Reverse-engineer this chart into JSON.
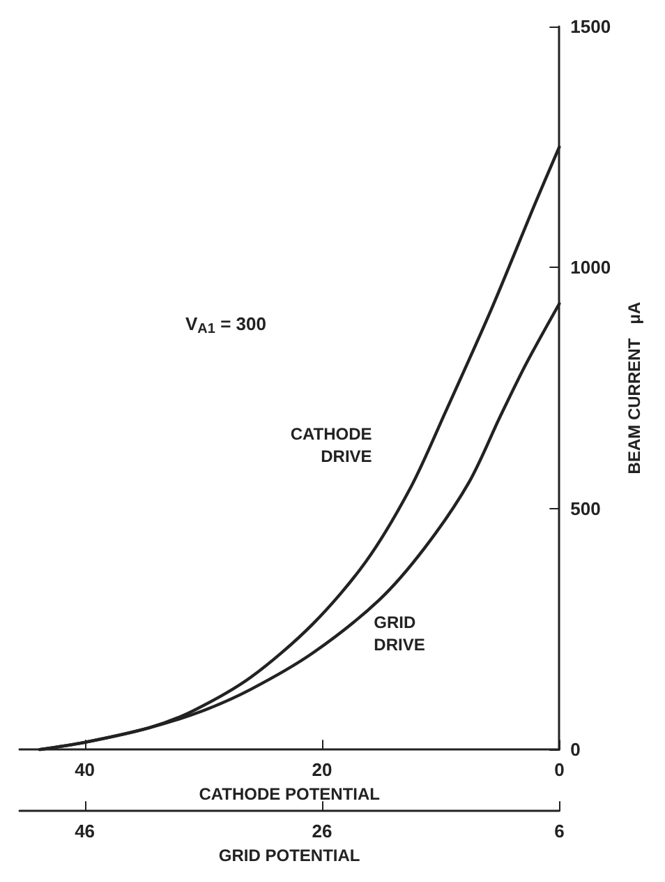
{
  "chart_data": {
    "type": "line",
    "xlabel": "CATHODE POTENTIAL",
    "x2label": "GRID POTENTIAL",
    "ylabel": "BEAM CURRENT   μA",
    "xlim": [
      45.5,
      0
    ],
    "xticks": [
      40,
      20,
      0
    ],
    "x2lim": [
      51.5,
      6
    ],
    "x2ticks": [
      46,
      26,
      6
    ],
    "ylim": [
      0,
      1500
    ],
    "yticks": [
      0,
      500,
      1000,
      1500
    ],
    "annotations": [
      "V$_{A1}$ = 300"
    ],
    "grid": false,
    "legend": false,
    "marker": "none",
    "line_style": "solid",
    "series": [
      {
        "name": "CATHODE DRIVE",
        "color": "#222222",
        "x": [
          43.8,
          40,
          34.6,
          30.9,
          26,
          20.8,
          16.3,
          12.5,
          9.6,
          5.7,
          2,
          0
        ],
        "values": [
          0,
          15,
          45,
          80,
          150,
          260,
          390,
          545,
          700,
          915,
          1135,
          1250
        ]
      },
      {
        "name": "GRID DRIVE",
        "color": "#222222",
        "x": [
          43.8,
          40,
          34.6,
          30.1,
          26,
          20.8,
          15.2,
          11.3,
          7.6,
          5,
          2.8,
          0
        ],
        "values": [
          0,
          15,
          45,
          80,
          125,
          200,
          310,
          420,
          555,
          690,
          800,
          925
        ]
      }
    ]
  }
}
